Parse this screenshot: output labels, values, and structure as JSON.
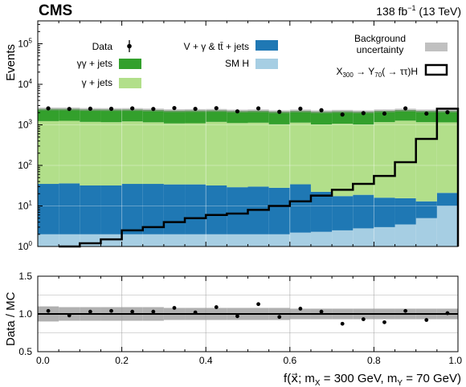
{
  "header": {
    "experiment": "CMS",
    "luminosity": "138 fb",
    "lumi_exponent": "−1",
    "energy": " (13 TeV)"
  },
  "chart_data": [
    {
      "type": "bar",
      "stacked": true,
      "ylabel": "Events",
      "yscale": "log",
      "ylim": [
        1,
        500000
      ],
      "xlim": [
        0.0,
        1.0
      ],
      "bin_edges": [
        0.0,
        0.05,
        0.1,
        0.15,
        0.2,
        0.25,
        0.3,
        0.35,
        0.4,
        0.45,
        0.5,
        0.55,
        0.6,
        0.65,
        0.7,
        0.75,
        0.8,
        0.85,
        0.9,
        0.95,
        1.0
      ],
      "series": [
        {
          "name": "SM H",
          "color": "#a6cee3",
          "values": [
            2,
            2,
            2,
            2,
            2,
            2,
            2,
            2,
            2,
            2,
            2,
            2,
            2.2,
            2.3,
            2.5,
            2.8,
            3,
            3.5,
            5,
            10
          ]
        },
        {
          "name": "V + γ & tt̄ + jets",
          "color": "#1f78b4",
          "values": [
            33,
            34,
            30,
            30,
            33,
            33,
            32,
            32,
            30,
            27,
            28,
            26,
            32,
            20,
            15,
            16,
            13,
            12,
            8,
            11
          ]
        },
        {
          "name": "γ + jets",
          "color": "#b2df8a",
          "values": [
            1200,
            1220,
            1150,
            1130,
            1180,
            1120,
            1050,
            1060,
            1150,
            1080,
            1100,
            1000,
            1100,
            1000,
            1050,
            1000,
            1150,
            1250,
            1150,
            1130
          ]
        },
        {
          "name": "γγ + jets",
          "color": "#33a02c",
          "values": [
            1240,
            1220,
            1220,
            1230,
            1180,
            1180,
            1160,
            1170,
            1100,
            1090,
            1100,
            1090,
            1080,
            1090,
            1100,
            1090,
            1060,
            1060,
            1050,
            1060
          ]
        }
      ],
      "signal": {
        "name_prefix": "X",
        "name_x_sub": "300",
        "name_arrow1": " → Y",
        "name_y_sub": "70",
        "name_rest": "( → ττ)H",
        "values": [
          0,
          1.0,
          1.2,
          1.5,
          2.5,
          3.0,
          4.0,
          5.0,
          6.0,
          6.5,
          8.0,
          10,
          13,
          18,
          25,
          35,
          55,
          120,
          450,
          2500
        ]
      },
      "data": {
        "name": "Data",
        "values": [
          2550,
          2470,
          2500,
          2490,
          2550,
          2470,
          2600,
          2480,
          2580,
          2150,
          2550,
          2100,
          2500,
          2300,
          1800,
          1950,
          1900,
          2550,
          1900,
          2050
        ]
      },
      "uncertainty": {
        "name": "Background uncertainty",
        "relative": 0.08
      }
    },
    {
      "type": "scatter",
      "ylabel": "Data / MC",
      "xlabel": "f(x⃗; m",
      "xlabel_x_sub": "X",
      "xlabel_mid": " = 300 GeV, m",
      "xlabel_y_sub": "Y",
      "xlabel_end": " = 70 GeV)",
      "ylim": [
        0.5,
        1.5
      ],
      "xlim": [
        0.0,
        1.0
      ],
      "reference_line": 1.0,
      "band_halfwidth": [
        0.1,
        0.09,
        0.09,
        0.09,
        0.09,
        0.09,
        0.08,
        0.08,
        0.08,
        0.08,
        0.08,
        0.08,
        0.07,
        0.07,
        0.07,
        0.07,
        0.07,
        0.07,
        0.07,
        0.07
      ],
      "x": [
        0.025,
        0.075,
        0.125,
        0.175,
        0.225,
        0.275,
        0.325,
        0.375,
        0.425,
        0.475,
        0.525,
        0.575,
        0.625,
        0.675,
        0.725,
        0.775,
        0.825,
        0.875,
        0.925,
        0.975
      ],
      "y": [
        1.04,
        0.98,
        1.03,
        1.04,
        1.03,
        1.03,
        1.08,
        1.02,
        1.09,
        0.97,
        1.13,
        0.96,
        1.07,
        1.03,
        0.87,
        0.93,
        0.89,
        1.04,
        0.92,
        1.01
      ],
      "x_ticks": [
        0.0,
        0.2,
        0.4,
        0.6,
        0.8,
        1.0
      ],
      "x_tick_labels": [
        "0.0",
        "0.2",
        "0.4",
        "0.6",
        "0.8",
        "1.0"
      ],
      "y_ticks": [
        0.5,
        1.0,
        1.5
      ],
      "y_tick_labels": [
        "0.5",
        "1.0",
        "1.5"
      ]
    }
  ],
  "upper_y_tick_labels": [
    {
      "base": "10",
      "exp": "0"
    },
    {
      "base": "10",
      "exp": "1"
    },
    {
      "base": "10",
      "exp": "2"
    },
    {
      "base": "10",
      "exp": "3"
    },
    {
      "base": "10",
      "exp": "4"
    },
    {
      "base": "10",
      "exp": "5"
    }
  ]
}
